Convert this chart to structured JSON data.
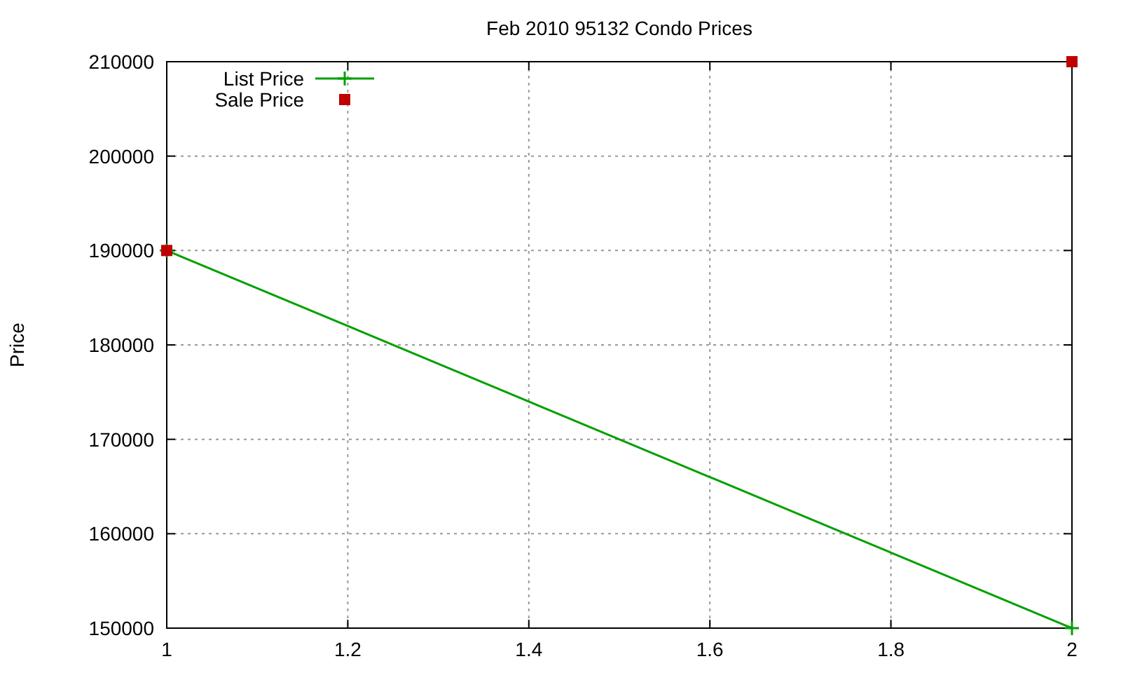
{
  "chart_data": {
    "type": "line",
    "title": "Feb 2010 95132 Condo Prices",
    "ylabel": "Price",
    "x": [
      1,
      2
    ],
    "xlim": [
      1,
      2
    ],
    "xticks": [
      1,
      1.2,
      1.4,
      1.6,
      1.8,
      2
    ],
    "ylim": [
      150000,
      210000
    ],
    "yticks": [
      150000,
      160000,
      170000,
      180000,
      190000,
      200000,
      210000
    ],
    "grid": true,
    "legend": "top left",
    "line_style": "solid",
    "series": [
      {
        "name": "List Price",
        "marker": "cross",
        "color": "#00a000",
        "values": [
          190000,
          150000
        ]
      },
      {
        "name": "Sale Price",
        "type": "scatter",
        "marker": "square",
        "color": "#c00000",
        "values": [
          190000,
          210000
        ]
      }
    ]
  }
}
